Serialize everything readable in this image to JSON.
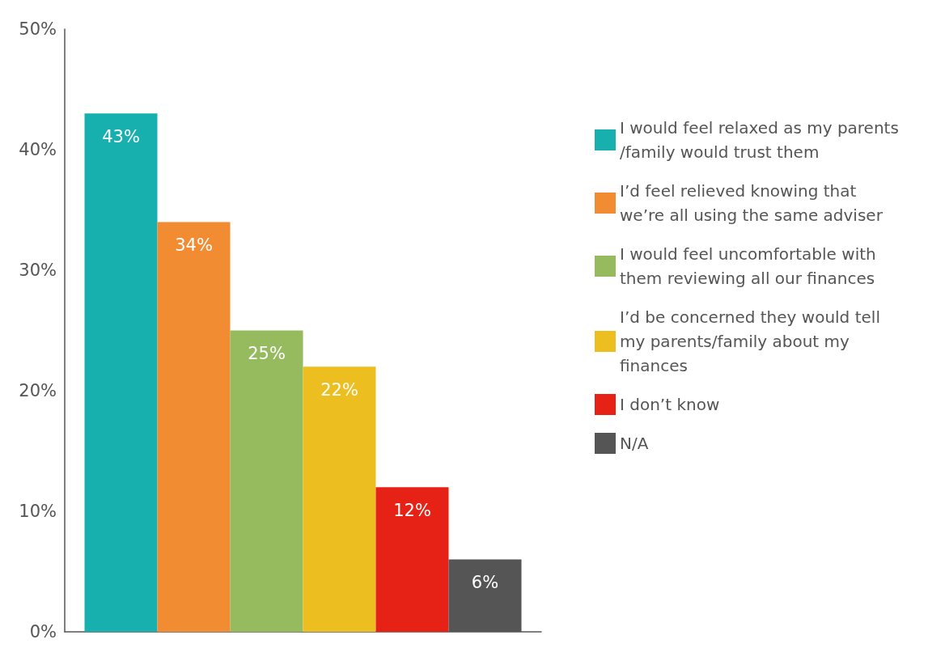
{
  "chart_data": {
    "type": "bar",
    "categories": [
      null
    ],
    "series": [
      {
        "name": "I would feel relaxed as my parents/family would trust them",
        "color": "#17b0ae",
        "values": [
          43
        ],
        "value_labels": [
          "43%"
        ]
      },
      {
        "name": "I’d feel relieved knowing that we’re all using the same adviser",
        "color": "#f28c33",
        "values": [
          34
        ],
        "value_labels": [
          "34%"
        ]
      },
      {
        "name": "I would feel uncomfortable with them reviewing all our finances",
        "color": "#96bb5f",
        "values": [
          25
        ],
        "value_labels": [
          "25%"
        ]
      },
      {
        "name": "I’d be concerned they would tell my parents/family about my finances",
        "color": "#edbe20",
        "values": [
          22
        ],
        "value_labels": [
          "22%"
        ]
      },
      {
        "name": "I don’t know",
        "color": "#e52215",
        "values": [
          12
        ],
        "value_labels": [
          "12%"
        ]
      },
      {
        "name": "N/A",
        "color": "#555555",
        "values": [
          6
        ],
        "value_labels": [
          "6%"
        ]
      }
    ],
    "ylim": [
      0,
      50
    ],
    "yticks": [
      {
        "value": 0,
        "label": "0%"
      },
      {
        "value": 10,
        "label": "10%"
      },
      {
        "value": 20,
        "label": "20%"
      },
      {
        "value": 30,
        "label": "30%"
      },
      {
        "value": 40,
        "label": "40%"
      },
      {
        "value": 50,
        "label": "50%"
      }
    ],
    "grid": false,
    "legend": "right"
  }
}
